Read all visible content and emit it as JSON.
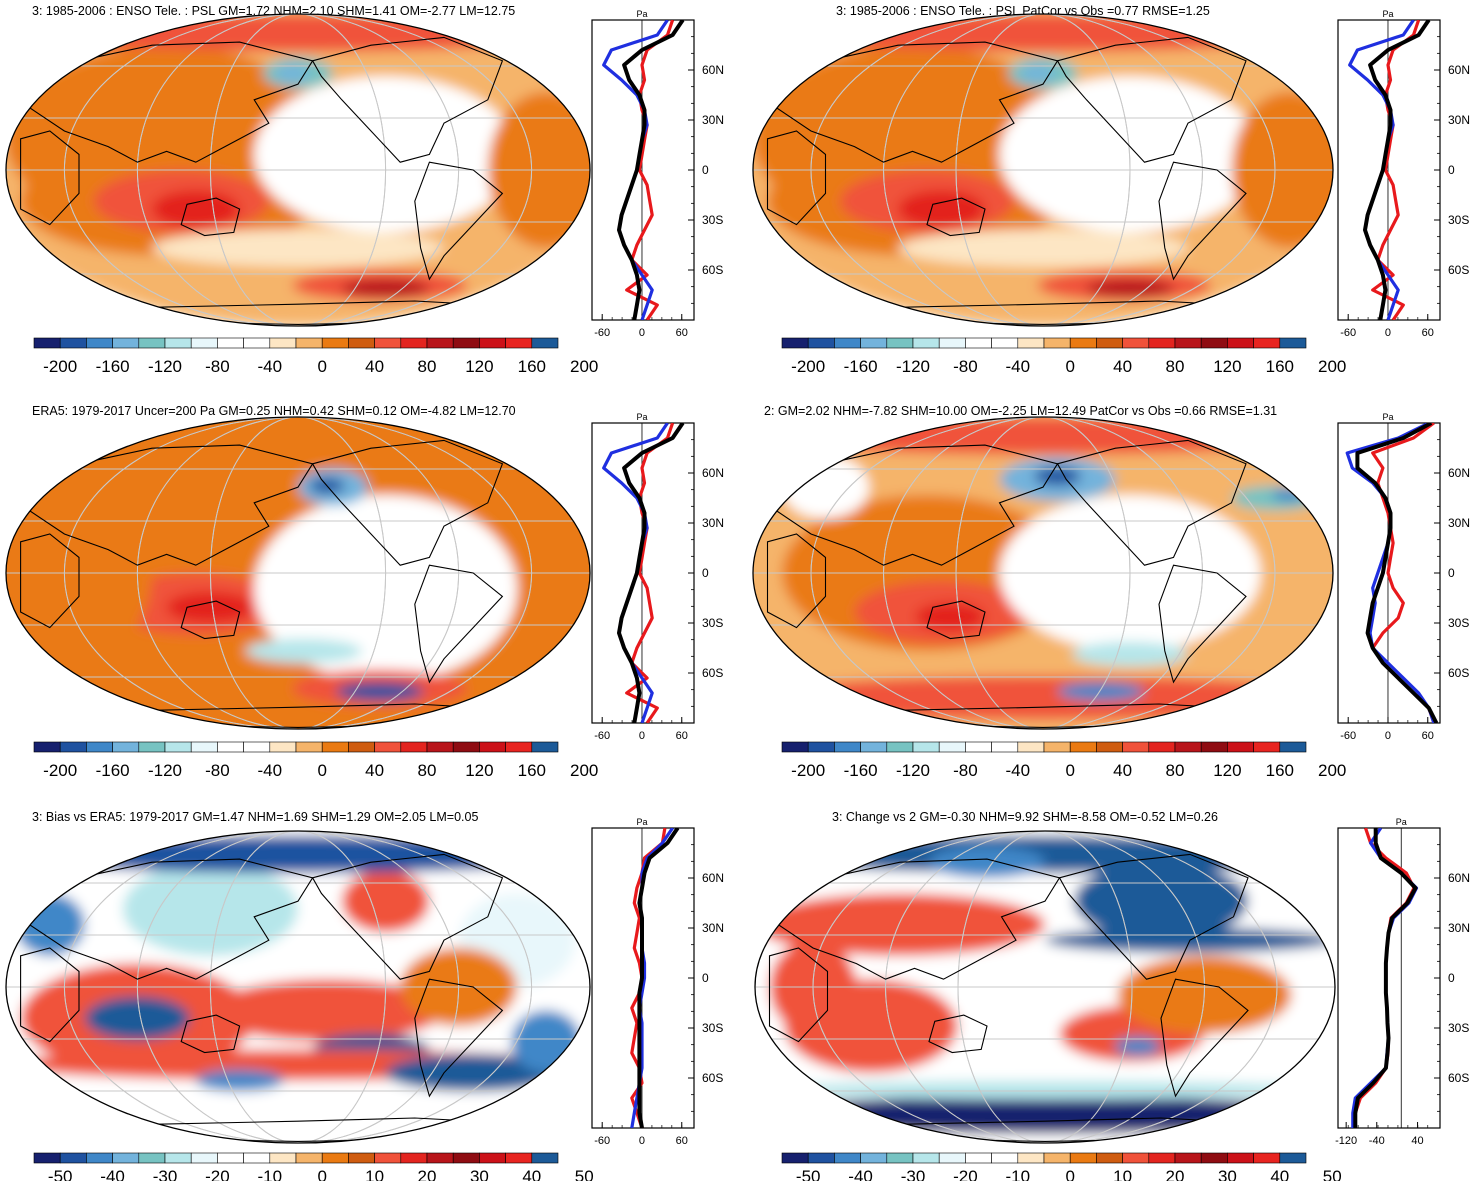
{
  "palette": [
    "#16206e",
    "#1f52a0",
    "#3f87c8",
    "#73b3dc",
    "#77c3c2",
    "#b6e6ea",
    "#e8f7fb",
    "#ffffff",
    "#ffffff",
    "#fde6c4",
    "#f5b46a",
    "#ea7a12",
    "#cf5c10",
    "#f0523a",
    "#e3241f",
    "#b8141a",
    "#8f0c12",
    "#cc1118",
    "#e82420",
    "#1c5a98"
  ],
  "panels": [
    {
      "id": "p1",
      "title": "3: 1985-2006 : ENSO Tele. : PSL GM=1.72 NHM=2.10 SHM=1.41 OM=-2.77 LM=12.75",
      "cbar_labels": [
        "-200",
        "-160",
        "-120",
        "-80",
        "-40",
        "0",
        "40",
        "80",
        "120",
        "160",
        "200"
      ],
      "zm_ticks": [
        "-60",
        "0",
        "60"
      ],
      "zm_unit": "Pa",
      "zm_lats": [
        "60N",
        "30N",
        "0",
        "30S",
        "60S"
      ]
    },
    {
      "id": "p2",
      "title": "3: 1985-2006 : ENSO Tele. : PSL PatCor vs Obs =0.77 RMSE=1.25",
      "cbar_labels": [
        "-200",
        "-160",
        "-120",
        "-80",
        "-40",
        "0",
        "40",
        "80",
        "120",
        "160",
        "200"
      ],
      "zm_ticks": [
        "-60",
        "0",
        "60"
      ],
      "zm_unit": "Pa",
      "zm_lats": [
        "60N",
        "30N",
        "0",
        "30S",
        "60S"
      ]
    },
    {
      "id": "p3",
      "title": "ERA5: 1979-2017 Uncer=200 Pa GM=0.25 NHM=0.42 SHM=0.12 OM=-4.82 LM=12.70",
      "cbar_labels": [
        "-200",
        "-160",
        "-120",
        "-80",
        "-40",
        "0",
        "40",
        "80",
        "120",
        "160",
        "200"
      ],
      "zm_ticks": [
        "-60",
        "0",
        "60"
      ],
      "zm_unit": "Pa",
      "zm_lats": [
        "60N",
        "30N",
        "0",
        "30S",
        "60S"
      ]
    },
    {
      "id": "p4",
      "title": "2: GM=2.02 NHM=-7.82 SHM=10.00 OM=-2.25 LM=12.49 PatCor vs Obs =0.66 RMSE=1.31",
      "cbar_labels": [
        "-200",
        "-160",
        "-120",
        "-80",
        "-40",
        "0",
        "40",
        "80",
        "120",
        "160",
        "200"
      ],
      "zm_ticks": [
        "-60",
        "0",
        "60"
      ],
      "zm_unit": "Pa",
      "zm_lats": [
        "60N",
        "30N",
        "0",
        "30S",
        "60S"
      ]
    },
    {
      "id": "p5",
      "title": "3: Bias vs ERA5: 1979-2017 GM=1.47 NHM=1.69 SHM=1.29 OM=2.05 LM=0.05",
      "cbar_labels": [
        "-50",
        "-40",
        "-30",
        "-20",
        "-10",
        "0",
        "10",
        "20",
        "30",
        "40",
        "50"
      ],
      "zm_ticks": [
        "-60",
        "0",
        "60"
      ],
      "zm_unit": "Pa",
      "zm_lats": [
        "60N",
        "30N",
        "0",
        "30S",
        "60S"
      ]
    },
    {
      "id": "p6",
      "title": "3: Change vs 2 GM=-0.30 NHM=9.92 SHM=-8.58 OM=-0.52 LM=0.26",
      "cbar_labels": [
        "-50",
        "-40",
        "-30",
        "-20",
        "-10",
        "0",
        "10",
        "20",
        "30",
        "40",
        "50"
      ],
      "zm_ticks": [
        "-120",
        "-40",
        "40"
      ],
      "zm_unit": "Pa",
      "zm_lats": [
        "60N",
        "30N",
        "0",
        "30S",
        "60S"
      ]
    }
  ]
}
